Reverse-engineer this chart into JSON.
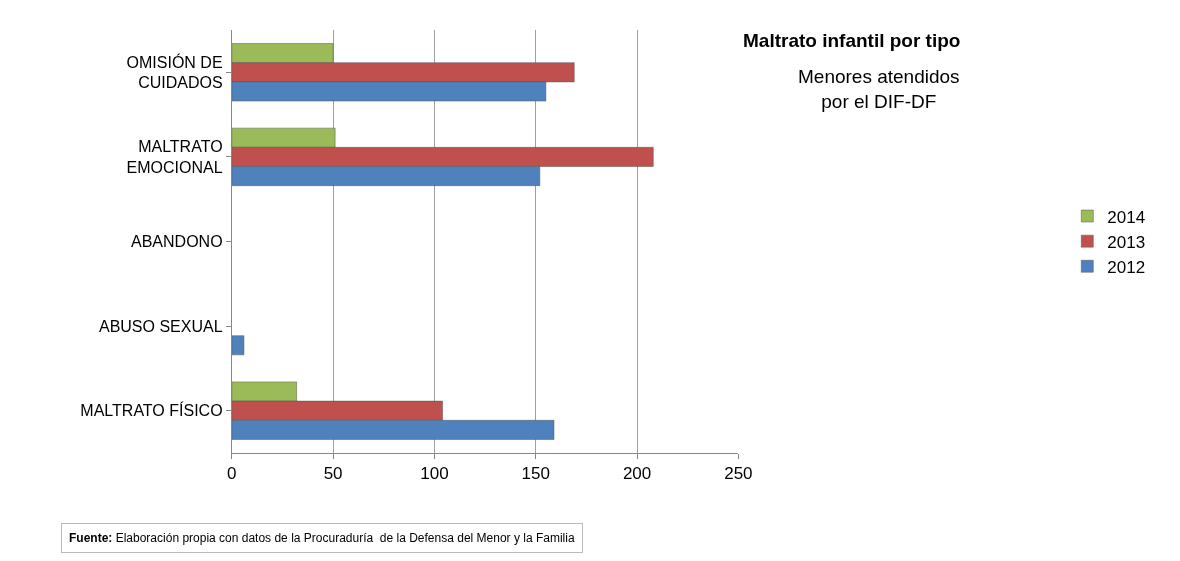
{
  "chart_data": {
    "type": "bar",
    "orientation": "horizontal",
    "title": "Maltrato infantil por tipo",
    "subtitle": "Menores atendidos\npor el DIF-DF",
    "categories": [
      "OMISIÓN DE\nCUIDADOS",
      "MALTRATO\nEMOCIONAL",
      "ABANDONO",
      "ABUSO SEXUAL",
      "MALTRATO FÍSICO"
    ],
    "series": [
      {
        "name": "2014",
        "color": "#9bbb59",
        "values": [
          50,
          51,
          null,
          null,
          32
        ]
      },
      {
        "name": "2013",
        "color": "#c0504d",
        "values": [
          169,
          208,
          null,
          null,
          104
        ]
      },
      {
        "name": "2012",
        "color": "#4f81bd",
        "values": [
          155,
          152,
          null,
          6,
          159
        ]
      }
    ],
    "xlim": [
      0,
      250
    ],
    "xticks": [
      0,
      50,
      100,
      150,
      200,
      250
    ],
    "grid": "x",
    "legend": "right",
    "annotations": [
      "Fuente: Elaboración propia con datos de la Procuraduría  de la Defensa del Menor y la Familia"
    ]
  }
}
